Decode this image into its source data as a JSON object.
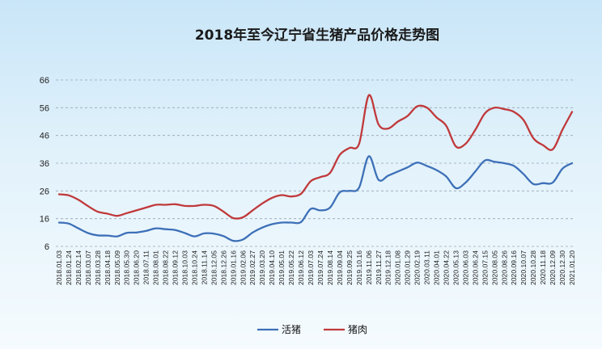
{
  "chart_data": {
    "type": "line",
    "title": "2018年至今辽宁省生猪产品价格走势图",
    "xlabel": "",
    "ylabel": "",
    "ylim": [
      6,
      66
    ],
    "yticks": [
      6,
      16,
      26,
      36,
      46,
      56,
      66
    ],
    "grid": true,
    "legend_position": "bottom",
    "x": [
      "2018.01.03",
      "2018.01.24",
      "2018.02.14",
      "2018.03.07",
      "2018.03.28",
      "2018.04.18",
      "2018.05.09",
      "2018.05.30",
      "2018.06.20",
      "2018.07.11",
      "2018.08.01",
      "2018.08.22",
      "2018.09.12",
      "2018.10.03",
      "2018.10.24",
      "2018.11.14",
      "2018.12.05",
      "2018.12.26",
      "2019.01.16",
      "2019.02.06",
      "2019.02.27",
      "2019.03.20",
      "2019.04.10",
      "2019.05.01",
      "2019.05.22",
      "2019.06.12",
      "2019.07.03",
      "2019.07.24",
      "2019.08.14",
      "2019.09.04",
      "2019.09.25",
      "2019.10.16",
      "2019.11.06",
      "2019.11.27",
      "2019.12.18",
      "2020.01.08",
      "2020.01.29",
      "2020.02.19",
      "2020.03.11",
      "2020.04.01",
      "2020.04.22",
      "2020.05.13",
      "2020.06.03",
      "2020.06.24",
      "2020.07.15",
      "2020.08.05",
      "2020.08.26",
      "2020.09.16",
      "2020.10.07",
      "2020.10.28",
      "2020.11.18",
      "2020.12.09",
      "2020.12.30",
      "2021.01.20"
    ],
    "series": [
      {
        "name": "活猪",
        "color": "#3d70b8",
        "values": [
          14.6,
          14.2,
          12.5,
          10.8,
          10.0,
          9.9,
          9.6,
          10.9,
          11.0,
          11.6,
          12.5,
          12.2,
          11.9,
          10.8,
          9.6,
          10.7,
          10.6,
          9.7,
          8.0,
          8.5,
          11.0,
          12.8,
          14.0,
          14.6,
          14.6,
          14.8,
          19.5,
          19.0,
          20.0,
          25.5,
          26.0,
          27.2,
          38.5,
          30.0,
          31.5,
          33.0,
          34.5,
          36.2,
          35.0,
          33.5,
          31.2,
          27.0,
          29.0,
          33.0,
          37.0,
          36.5,
          36.0,
          35.0,
          32.0,
          28.5,
          28.8,
          29.0,
          34.0,
          36.0
        ]
      },
      {
        "name": "猪肉",
        "color": "#c0393b",
        "values": [
          24.8,
          24.4,
          22.8,
          20.5,
          18.5,
          17.8,
          17.0,
          18.0,
          19.0,
          20.0,
          21.0,
          21.0,
          21.2,
          20.6,
          20.6,
          21.0,
          20.6,
          18.5,
          16.2,
          16.5,
          19.0,
          21.5,
          23.5,
          24.5,
          24.0,
          25.0,
          29.5,
          31.0,
          32.5,
          39.0,
          41.5,
          43.0,
          60.5,
          50.0,
          48.5,
          51.0,
          53.0,
          56.5,
          56.0,
          52.5,
          49.5,
          42.0,
          43.0,
          48.0,
          54.0,
          56.0,
          55.5,
          54.5,
          51.5,
          45.0,
          42.5,
          41.0,
          48.0,
          54.5
        ]
      }
    ]
  }
}
